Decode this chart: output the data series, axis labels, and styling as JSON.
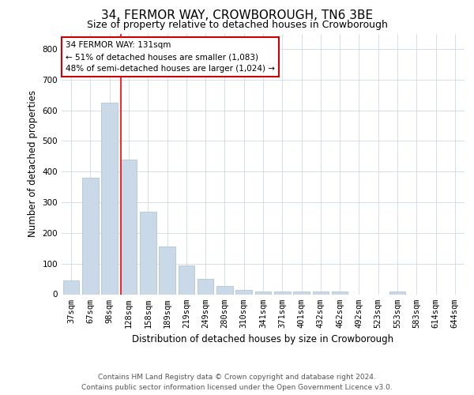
{
  "title": "34, FERMOR WAY, CROWBOROUGH, TN6 3BE",
  "subtitle": "Size of property relative to detached houses in Crowborough",
  "xlabel": "Distribution of detached houses by size in Crowborough",
  "ylabel": "Number of detached properties",
  "categories": [
    "37sqm",
    "67sqm",
    "98sqm",
    "128sqm",
    "158sqm",
    "189sqm",
    "219sqm",
    "249sqm",
    "280sqm",
    "310sqm",
    "341sqm",
    "371sqm",
    "401sqm",
    "432sqm",
    "462sqm",
    "492sqm",
    "523sqm",
    "553sqm",
    "583sqm",
    "614sqm",
    "644sqm"
  ],
  "values": [
    45,
    380,
    625,
    440,
    270,
    155,
    95,
    50,
    27,
    15,
    10,
    10,
    10,
    10,
    8,
    0,
    0,
    8,
    0,
    0,
    0
  ],
  "bar_color": "#c9d9e8",
  "bar_edge_color": "#a8bfd0",
  "red_line_index": 3,
  "annotation_text": "34 FERMOR WAY: 131sqm\n← 51% of detached houses are smaller (1,083)\n48% of semi-detached houses are larger (1,024) →",
  "annotation_box_color": "#ffffff",
  "annotation_box_edge": "#cc0000",
  "ylim": [
    0,
    850
  ],
  "yticks": [
    0,
    100,
    200,
    300,
    400,
    500,
    600,
    700,
    800
  ],
  "background_color": "#ffffff",
  "grid_color": "#d0d8e8",
  "footer_line1": "Contains HM Land Registry data © Crown copyright and database right 2024.",
  "footer_line2": "Contains public sector information licensed under the Open Government Licence v3.0.",
  "title_fontsize": 11,
  "subtitle_fontsize": 9,
  "axis_label_fontsize": 8.5,
  "tick_fontsize": 7.5,
  "footer_fontsize": 6.5,
  "annotation_fontsize": 7.5
}
